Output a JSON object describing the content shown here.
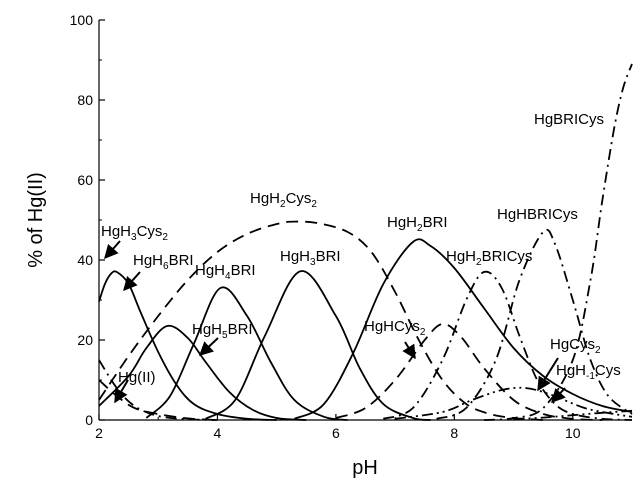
{
  "chart_data": {
    "type": "line",
    "xlabel": "pH",
    "ylabel": "% of Hg(II)",
    "xlim": [
      2,
      11
    ],
    "ylim": [
      0,
      100
    ],
    "x_ticks": [
      2,
      4,
      6,
      8,
      10
    ],
    "y_ticks": [
      0,
      20,
      40,
      60,
      80,
      100
    ],
    "grid": false,
    "series": [
      {
        "name": "Hg(II)",
        "style": "dashdot",
        "points": [
          [
            2,
            15
          ],
          [
            2.3,
            8
          ],
          [
            2.6,
            3.5
          ],
          [
            3,
            1
          ],
          [
            3.5,
            0.2
          ],
          [
            4,
            0
          ]
        ]
      },
      {
        "name": "HgH3Cys2",
        "style": "solid",
        "points": [
          [
            2,
            29.6
          ],
          [
            2.1,
            34
          ],
          [
            2.2,
            36.5
          ],
          [
            2.3,
            37
          ],
          [
            2.5,
            34
          ],
          [
            2.7,
            27
          ],
          [
            3,
            17
          ],
          [
            3.3,
            9
          ],
          [
            3.6,
            4
          ],
          [
            4,
            1.5
          ],
          [
            4.5,
            0.3
          ],
          [
            5,
            0
          ]
        ]
      },
      {
        "name": "HgH6BRI",
        "style": "dashed",
        "points": [
          [
            2,
            10
          ],
          [
            2.3,
            6
          ],
          [
            2.6,
            3
          ],
          [
            3,
            1.5
          ],
          [
            3.5,
            0.4
          ],
          [
            4,
            0
          ]
        ]
      },
      {
        "name": "HgH5BRI",
        "style": "solid",
        "points": [
          [
            2,
            3.5
          ],
          [
            2.5,
            11
          ],
          [
            2.8,
            18
          ],
          [
            3.15,
            23.5
          ],
          [
            3.5,
            20.5
          ],
          [
            3.8,
            14.5
          ],
          [
            4.2,
            7
          ],
          [
            4.6,
            2.5
          ],
          [
            5,
            0.5
          ],
          [
            5.5,
            0
          ]
        ]
      },
      {
        "name": "HgH4BRI",
        "style": "solid",
        "points": [
          [
            2.8,
            0.5
          ],
          [
            3.2,
            6
          ],
          [
            3.6,
            19
          ],
          [
            4.05,
            33
          ],
          [
            4.5,
            26
          ],
          [
            4.9,
            14.5
          ],
          [
            5.3,
            5
          ],
          [
            5.8,
            0.8
          ],
          [
            6.2,
            0
          ]
        ]
      },
      {
        "name": "HgH3BRI",
        "style": "solid",
        "points": [
          [
            3.8,
            0.3
          ],
          [
            4.3,
            5
          ],
          [
            4.8,
            21
          ],
          [
            5.4,
            37.2
          ],
          [
            6,
            26
          ],
          [
            6.4,
            13
          ],
          [
            6.8,
            4
          ],
          [
            7.3,
            0.5
          ],
          [
            7.6,
            0
          ]
        ]
      },
      {
        "name": "HgH2BRI",
        "style": "solid",
        "points": [
          [
            5.3,
            0.3
          ],
          [
            5.8,
            4
          ],
          [
            6.3,
            17
          ],
          [
            6.8,
            34
          ],
          [
            7.3,
            44.5
          ],
          [
            7.6,
            43.5
          ],
          [
            8,
            38
          ],
          [
            8.5,
            28
          ],
          [
            9,
            18
          ],
          [
            9.5,
            11
          ],
          [
            10,
            6.5
          ],
          [
            10.5,
            3.5
          ],
          [
            11,
            2
          ]
        ]
      },
      {
        "name": "HgH2Cys2",
        "style": "dashed",
        "points": [
          [
            2,
            5
          ],
          [
            2.5,
            16
          ],
          [
            3,
            26
          ],
          [
            3.5,
            35
          ],
          [
            4,
            42
          ],
          [
            4.5,
            46.5
          ],
          [
            5,
            49
          ],
          [
            5.3,
            49.6
          ],
          [
            5.7,
            49.2
          ],
          [
            6.2,
            47
          ],
          [
            6.6,
            42
          ],
          [
            7,
            32
          ],
          [
            7.4,
            20
          ],
          [
            7.8,
            10
          ],
          [
            8.2,
            4
          ],
          [
            8.6,
            1.5
          ],
          [
            9,
            0.5
          ],
          [
            9.5,
            0
          ]
        ]
      },
      {
        "name": "HgHCys2",
        "style": "dashed",
        "points": [
          [
            6,
            0.5
          ],
          [
            6.5,
            3
          ],
          [
            7,
            10
          ],
          [
            7.5,
            20
          ],
          [
            7.8,
            24
          ],
          [
            8.1,
            21
          ],
          [
            8.5,
            13
          ],
          [
            9,
            5
          ],
          [
            9.5,
            1.5
          ],
          [
            10,
            0.3
          ],
          [
            10.5,
            0
          ]
        ]
      },
      {
        "name": "HgH2BRICys",
        "style": "dashdot",
        "points": [
          [
            6.8,
            0.3
          ],
          [
            7.3,
            3
          ],
          [
            7.8,
            15
          ],
          [
            8.2,
            30
          ],
          [
            8.5,
            37
          ],
          [
            8.8,
            33
          ],
          [
            9.1,
            21
          ],
          [
            9.4,
            10
          ],
          [
            9.7,
            4
          ],
          [
            10,
            1.5
          ],
          [
            10.5,
            0.3
          ],
          [
            11,
            0
          ]
        ]
      },
      {
        "name": "HgHBRICys",
        "style": "dashdot",
        "points": [
          [
            7.7,
            0.3
          ],
          [
            8.2,
            3
          ],
          [
            8.7,
            15
          ],
          [
            9.1,
            35
          ],
          [
            9.5,
            47
          ],
          [
            9.7,
            44
          ],
          [
            10,
            30
          ],
          [
            10.3,
            15
          ],
          [
            10.6,
            6
          ],
          [
            11,
            1.5
          ]
        ]
      },
      {
        "name": "HgBRICys",
        "style": "dashdot",
        "points": [
          [
            8.5,
            0
          ],
          [
            9,
            0.5
          ],
          [
            9.5,
            3
          ],
          [
            10,
            15
          ],
          [
            10.3,
            35
          ],
          [
            10.5,
            55
          ],
          [
            10.7,
            73
          ],
          [
            10.85,
            83
          ],
          [
            11,
            89
          ]
        ]
      },
      {
        "name": "HgCys2",
        "style": "dashdotdot",
        "points": [
          [
            7,
            0.3
          ],
          [
            7.8,
            2
          ],
          [
            8.3,
            5
          ],
          [
            8.8,
            7.5
          ],
          [
            9.2,
            8
          ],
          [
            9.6,
            6.5
          ],
          [
            10.2,
            3
          ],
          [
            10.7,
            1.5
          ],
          [
            11,
            0.8
          ]
        ]
      },
      {
        "name": "HgH-1Cys",
        "style": "dashdotdot",
        "points": [
          [
            9,
            0.2
          ],
          [
            9.5,
            0.6
          ],
          [
            10,
            1.2
          ],
          [
            10.5,
            1.8
          ],
          [
            11,
            2.3
          ]
        ]
      }
    ]
  },
  "annotations": {
    "hg2": {
      "main": "Hg(II)"
    },
    "hgh3cys2": {
      "a": "HgH",
      "s1": "3",
      "b": "Cys",
      "s2": "2"
    },
    "hgh6bri": {
      "a": "HgH",
      "s1": "6",
      "b": "BRI"
    },
    "hgh5bri": {
      "a": "HgH",
      "s1": "5",
      "b": "BRI"
    },
    "hgh4bri": {
      "a": "HgH",
      "s1": "4",
      "b": "BRI"
    },
    "hgh3bri": {
      "a": "HgH",
      "s1": "3",
      "b": "BRI"
    },
    "hgh2cys2": {
      "a": "HgH",
      "s1": "2",
      "b": "Cys",
      "s2": "2"
    },
    "hgh2bri": {
      "a": "HgH",
      "s1": "2",
      "b": "BRI"
    },
    "hghcys2": {
      "a": "HgHCys",
      "s1": "2"
    },
    "hgh2bricys": {
      "a": "HgH",
      "s1": "2",
      "b": "BRICys"
    },
    "hghbricys": {
      "main": "HgHBRICys"
    },
    "hgbricys": {
      "main": "HgBRICys"
    },
    "hgcys2": {
      "a": "HgCys",
      "s1": "2"
    },
    "hghm1cys": {
      "a": "HgH",
      "s1": "-1",
      "b": "Cys"
    }
  },
  "colors": {
    "line": "#000000",
    "background": "#ffffff"
  }
}
